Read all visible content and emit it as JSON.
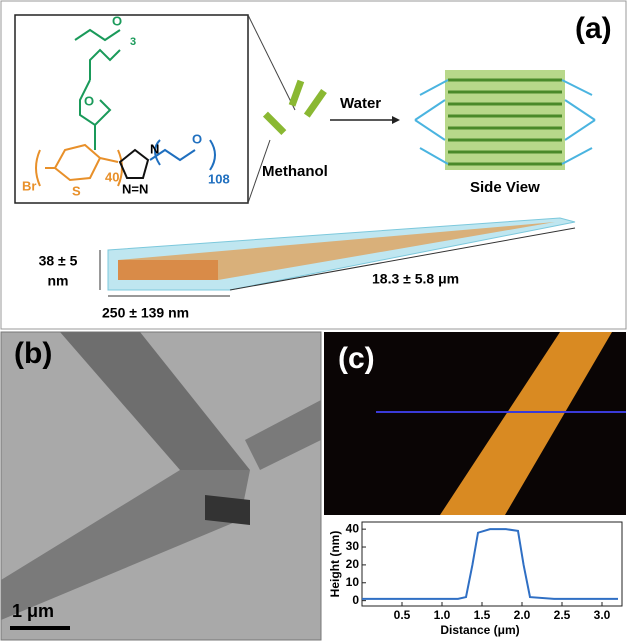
{
  "panel_a": {
    "label": "(a)",
    "chemistry": {
      "bromine": "Br",
      "sulfur": "S",
      "repeat_thiophene": "40",
      "repeat_peg": "108",
      "repeat_side": "3",
      "oxygen_top": "O",
      "oxygen_mid": "O",
      "oxygen_peg": "O",
      "nitrogen_1": "N",
      "nitrogen_23": "N=N"
    },
    "methanol": "Methanol",
    "water": "Water",
    "side_view": "Side View",
    "thickness": "38 ± 5",
    "thickness_unit": "nm",
    "width": "250 ± 139 nm",
    "length": "18.3 ± 5.8 μm"
  },
  "panel_b": {
    "label": "(b)",
    "scale_bar": "1 μm"
  },
  "panel_c": {
    "label": "(c)",
    "chart_data": {
      "type": "line",
      "xlabel": "Distance (μm)",
      "ylabel": "Height (nm)",
      "xlim": [
        0,
        3.25
      ],
      "ylim": [
        -3,
        44
      ],
      "xticks": [
        0.5,
        {
          "value": 1,
          "label": "1.0"
        },
        1.5,
        {
          "value": 2,
          "label": "2.0"
        },
        2.5,
        {
          "value": 3,
          "label": "3.0"
        }
      ],
      "yticks": [
        0,
        10,
        20,
        30,
        40
      ],
      "x": [
        0,
        0.3,
        0.6,
        0.9,
        1.2,
        1.3,
        1.38,
        1.45,
        1.6,
        1.8,
        1.95,
        2.02,
        2.1,
        2.4,
        2.8,
        3.2
      ],
      "values": [
        1,
        1,
        1,
        1,
        1,
        2,
        20,
        38,
        40,
        40,
        39,
        20,
        2,
        1,
        1,
        1
      ],
      "color": "#2f6fc4"
    }
  }
}
